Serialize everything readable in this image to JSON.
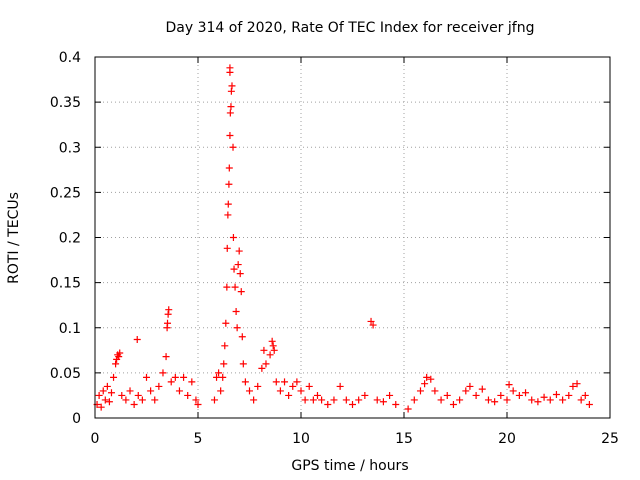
{
  "chart_data": {
    "type": "scatter",
    "title": "Day 314 of 2020, Rate Of TEC Index for receiver jfng",
    "xlabel": "GPS time / hours",
    "ylabel": "ROTI / TECUs",
    "xlim": [
      0,
      25
    ],
    "ylim": [
      0,
      0.4
    ],
    "xticks": [
      0,
      5,
      10,
      15,
      20,
      25
    ],
    "yticks": [
      0,
      0.05,
      0.1,
      0.15,
      0.2,
      0.25,
      0.3,
      0.35,
      0.4
    ],
    "grid": true,
    "marker": "+",
    "color": "#ff0000",
    "series": [
      {
        "name": "ROTI",
        "points": [
          [
            0.1,
            0.015
          ],
          [
            0.2,
            0.025
          ],
          [
            0.3,
            0.012
          ],
          [
            0.4,
            0.03
          ],
          [
            0.5,
            0.02
          ],
          [
            0.6,
            0.035
          ],
          [
            0.7,
            0.018
          ],
          [
            0.8,
            0.028
          ],
          [
            0.9,
            0.045
          ],
          [
            1.0,
            0.06
          ],
          [
            1.05,
            0.065
          ],
          [
            1.1,
            0.07
          ],
          [
            1.15,
            0.068
          ],
          [
            1.2,
            0.072
          ],
          [
            1.3,
            0.025
          ],
          [
            1.5,
            0.02
          ],
          [
            1.7,
            0.03
          ],
          [
            1.9,
            0.015
          ],
          [
            2.05,
            0.087
          ],
          [
            2.1,
            0.025
          ],
          [
            2.3,
            0.02
          ],
          [
            2.5,
            0.045
          ],
          [
            2.7,
            0.03
          ],
          [
            2.9,
            0.02
          ],
          [
            3.1,
            0.035
          ],
          [
            3.3,
            0.05
          ],
          [
            3.45,
            0.068
          ],
          [
            3.5,
            0.1
          ],
          [
            3.52,
            0.105
          ],
          [
            3.55,
            0.115
          ],
          [
            3.58,
            0.12
          ],
          [
            3.7,
            0.04
          ],
          [
            3.9,
            0.045
          ],
          [
            4.1,
            0.03
          ],
          [
            4.3,
            0.045
          ],
          [
            4.5,
            0.025
          ],
          [
            4.7,
            0.04
          ],
          [
            4.9,
            0.02
          ],
          [
            5.0,
            0.015
          ],
          [
            5.8,
            0.02
          ],
          [
            5.9,
            0.045
          ],
          [
            6.0,
            0.05
          ],
          [
            6.1,
            0.03
          ],
          [
            6.2,
            0.045
          ],
          [
            6.25,
            0.06
          ],
          [
            6.3,
            0.08
          ],
          [
            6.35,
            0.105
          ],
          [
            6.4,
            0.145
          ],
          [
            6.42,
            0.188
          ],
          [
            6.45,
            0.225
          ],
          [
            6.47,
            0.237
          ],
          [
            6.5,
            0.259
          ],
          [
            6.52,
            0.277
          ],
          [
            6.55,
            0.313
          ],
          [
            6.57,
            0.338
          ],
          [
            6.6,
            0.345
          ],
          [
            6.62,
            0.362
          ],
          [
            6.65,
            0.368
          ],
          [
            6.55,
            0.383
          ],
          [
            6.55,
            0.388
          ],
          [
            6.7,
            0.3
          ],
          [
            6.72,
            0.2
          ],
          [
            6.75,
            0.165
          ],
          [
            6.8,
            0.145
          ],
          [
            6.85,
            0.118
          ],
          [
            6.9,
            0.1
          ],
          [
            6.95,
            0.17
          ],
          [
            7.0,
            0.185
          ],
          [
            7.05,
            0.16
          ],
          [
            7.1,
            0.14
          ],
          [
            7.15,
            0.09
          ],
          [
            7.2,
            0.06
          ],
          [
            7.3,
            0.04
          ],
          [
            7.5,
            0.03
          ],
          [
            7.7,
            0.02
          ],
          [
            7.9,
            0.035
          ],
          [
            8.1,
            0.055
          ],
          [
            8.2,
            0.075
          ],
          [
            8.3,
            0.06
          ],
          [
            8.5,
            0.07
          ],
          [
            8.6,
            0.085
          ],
          [
            8.65,
            0.08
          ],
          [
            8.7,
            0.075
          ],
          [
            8.8,
            0.04
          ],
          [
            9.0,
            0.03
          ],
          [
            9.2,
            0.04
          ],
          [
            9.4,
            0.025
          ],
          [
            9.6,
            0.035
          ],
          [
            9.8,
            0.04
          ],
          [
            10.0,
            0.03
          ],
          [
            10.2,
            0.02
          ],
          [
            10.4,
            0.035
          ],
          [
            10.6,
            0.02
          ],
          [
            10.8,
            0.025
          ],
          [
            11.0,
            0.02
          ],
          [
            11.3,
            0.015
          ],
          [
            11.6,
            0.02
          ],
          [
            11.9,
            0.035
          ],
          [
            12.2,
            0.02
          ],
          [
            12.5,
            0.015
          ],
          [
            12.8,
            0.02
          ],
          [
            13.1,
            0.025
          ],
          [
            13.4,
            0.107
          ],
          [
            13.5,
            0.103
          ],
          [
            13.7,
            0.02
          ],
          [
            14.0,
            0.018
          ],
          [
            14.3,
            0.025
          ],
          [
            14.6,
            0.015
          ],
          [
            15.2,
            0.01
          ],
          [
            15.5,
            0.02
          ],
          [
            15.8,
            0.03
          ],
          [
            16.0,
            0.038
          ],
          [
            16.1,
            0.045
          ],
          [
            16.3,
            0.043
          ],
          [
            16.5,
            0.03
          ],
          [
            16.8,
            0.02
          ],
          [
            17.1,
            0.025
          ],
          [
            17.4,
            0.015
          ],
          [
            17.7,
            0.02
          ],
          [
            18.0,
            0.03
          ],
          [
            18.2,
            0.035
          ],
          [
            18.5,
            0.025
          ],
          [
            18.8,
            0.032
          ],
          [
            19.1,
            0.02
          ],
          [
            19.4,
            0.018
          ],
          [
            19.7,
            0.025
          ],
          [
            20.0,
            0.02
          ],
          [
            20.1,
            0.037
          ],
          [
            20.3,
            0.03
          ],
          [
            20.6,
            0.025
          ],
          [
            20.9,
            0.028
          ],
          [
            21.2,
            0.02
          ],
          [
            21.5,
            0.018
          ],
          [
            21.8,
            0.023
          ],
          [
            22.1,
            0.02
          ],
          [
            22.4,
            0.026
          ],
          [
            22.7,
            0.02
          ],
          [
            23.0,
            0.025
          ],
          [
            23.2,
            0.035
          ],
          [
            23.4,
            0.038
          ],
          [
            23.6,
            0.02
          ],
          [
            23.8,
            0.025
          ],
          [
            24.0,
            0.015
          ]
        ]
      }
    ]
  }
}
